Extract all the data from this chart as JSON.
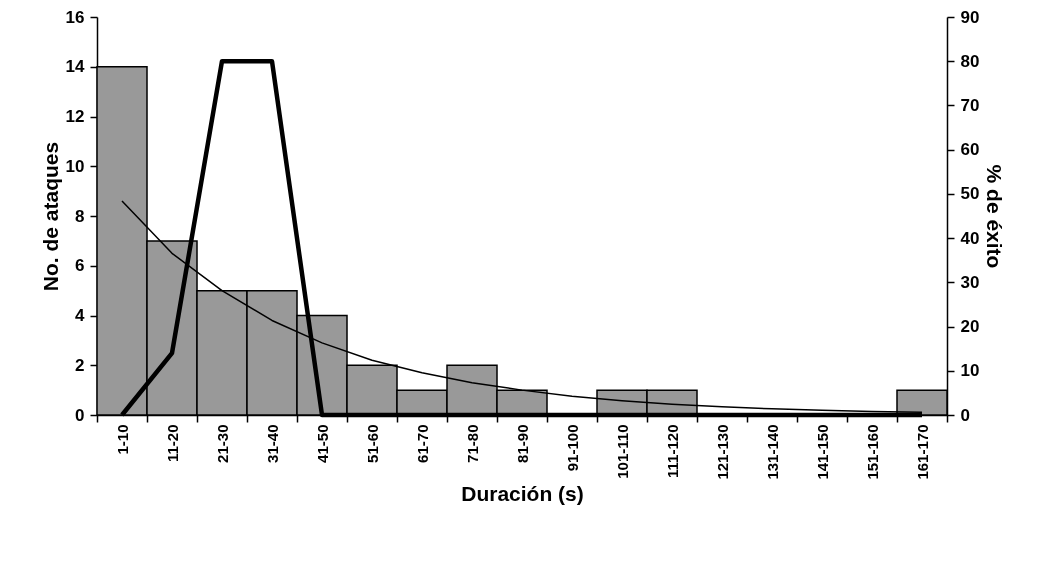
{
  "chart_data": {
    "type": "bar",
    "xlabel": "Duración (s)",
    "ylabel": "No. de ataques",
    "y2label": "% de éxito",
    "categories": [
      "1-10",
      "11-20",
      "21-30",
      "31-40",
      "41-50",
      "51-60",
      "61-70",
      "71-80",
      "81-90",
      "91-100",
      "101-110",
      "111-120",
      "121-130",
      "131-140",
      "141-150",
      "151-160",
      "161-170"
    ],
    "ylim": [
      0,
      16
    ],
    "yticks": [
      0,
      2,
      4,
      6,
      8,
      10,
      12,
      14,
      16
    ],
    "y2lim": [
      0,
      90
    ],
    "y2ticks": [
      0,
      10,
      20,
      30,
      40,
      50,
      60,
      70,
      80,
      90
    ],
    "series": [
      {
        "color": "#999999",
        "values": [
          14,
          7,
          5,
          5,
          4,
          2,
          1,
          2,
          1,
          0,
          1,
          1,
          0,
          0,
          0,
          0,
          1
        ]
      },
      {
        "type": "line",
        "axis": "y2",
        "color": "#000000",
        "values": [
          0,
          14,
          80,
          80,
          0,
          0,
          0,
          0,
          0,
          0,
          0,
          0,
          0,
          0,
          0,
          0,
          0
        ]
      },
      {
        "type": "line",
        "color": "#000000",
        "values": [
          8.6,
          6.5,
          5.0,
          3.8,
          2.9,
          2.2,
          1.7,
          1.3,
          1.0,
          0.75,
          0.57,
          0.43,
          0.33,
          0.25,
          0.19,
          0.14,
          0.11
        ]
      }
    ]
  }
}
